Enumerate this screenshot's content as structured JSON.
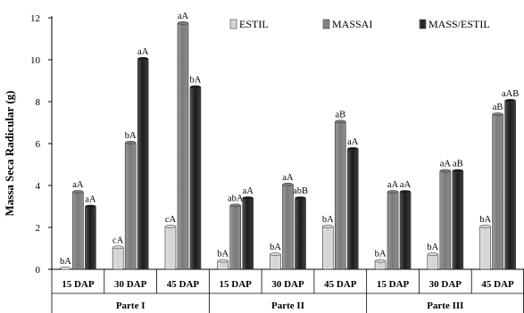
{
  "chart_data": {
    "type": "bar",
    "ylabel": "Massa Seca Radicular (g)",
    "ylim": [
      0,
      12
    ],
    "yticks": [
      0,
      2,
      4,
      6,
      8,
      10,
      12
    ],
    "grid": false,
    "legend_position": "top-right",
    "groups": [
      {
        "name": "Parte I",
        "categories": [
          "15 DAP",
          "30 DAP",
          "45 DAP"
        ]
      },
      {
        "name": "Parte II",
        "categories": [
          "15 DAP",
          "30 DAP",
          "45 DAP"
        ]
      },
      {
        "name": "Parte III",
        "categories": [
          "15 DAP",
          "30 DAP",
          "45 DAP"
        ]
      }
    ],
    "series": [
      {
        "name": "ESTIL",
        "color": "#d4d4d4",
        "values": [
          0.05,
          1.05,
          2.05,
          0.4,
          0.72,
          2.05,
          0.4,
          0.72,
          2.05
        ],
        "labels": [
          "bA",
          "cA",
          "cA",
          "bA",
          "bA",
          "bA",
          "bA",
          "bA",
          "bA"
        ]
      },
      {
        "name": "MASSAI",
        "color": "#7a7a7a",
        "values": [
          3.7,
          6.05,
          11.75,
          3.05,
          4.05,
          7.05,
          3.7,
          4.7,
          7.4
        ],
        "labels": [
          "aA",
          "bA",
          "aA",
          "abA",
          "aA",
          "aB",
          "aA",
          "aA",
          "aB"
        ]
      },
      {
        "name": "MASS/ESTIL",
        "color": "#1c1c1c",
        "values": [
          3.0,
          10.05,
          8.7,
          3.4,
          3.4,
          5.75,
          3.7,
          4.7,
          8.05
        ],
        "labels": [
          "aA",
          "aA",
          "bA",
          "aA",
          "abB",
          "aA",
          "aA",
          "aB",
          "aAB"
        ]
      }
    ]
  }
}
